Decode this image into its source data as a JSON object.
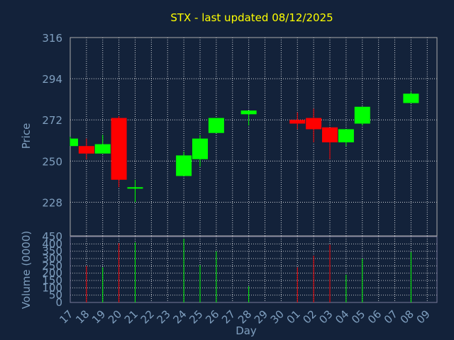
{
  "chart_data": {
    "type": "candlestick",
    "title": "STX - last updated 08/12/2025",
    "xlabel": "Day",
    "colors": {
      "background": "#13223a",
      "title": "#ffff00",
      "axis_text": "#7f9fbf",
      "grid": "#ffffff",
      "up": "#00ff00",
      "down": "#ff0000",
      "price_frame": "#aaaaaa",
      "volume_frame": "#7a7a9a"
    },
    "x_tick_labels": [
      "17",
      "18",
      "19",
      "20",
      "21",
      "22",
      "23",
      "24",
      "25",
      "26",
      "27",
      "28",
      "29",
      "30",
      "01",
      "02",
      "03",
      "04",
      "05",
      "06",
      "07",
      "08",
      "09"
    ],
    "price_panel": {
      "ylabel": "Price",
      "ylim": [
        210,
        316
      ],
      "yticks": [
        228,
        250,
        272,
        294,
        316
      ],
      "grid": true
    },
    "volume_panel": {
      "ylabel": "Volume (0000)",
      "ylim": [
        0,
        450
      ],
      "yticks": [
        0,
        50,
        100,
        150,
        200,
        250,
        300,
        350,
        400,
        450
      ],
      "grid": true
    },
    "candles": [
      {
        "day": "17",
        "open": 258,
        "high": 263,
        "low": 258,
        "close": 262,
        "volume": null
      },
      {
        "day": "18",
        "open": 258,
        "high": 262,
        "low": 251,
        "close": 254,
        "volume": 250
      },
      {
        "day": "19",
        "open": 254,
        "high": 264,
        "low": 254,
        "close": 259,
        "volume": 240
      },
      {
        "day": "20",
        "open": 273,
        "high": 274,
        "low": 236,
        "close": 240,
        "volume": 405
      },
      {
        "day": "21",
        "open": 236,
        "high": 240,
        "low": 228,
        "close": 236,
        "volume": 410
      },
      {
        "day": "24",
        "open": 242,
        "high": 255,
        "low": 242,
        "close": 253,
        "volume": 435
      },
      {
        "day": "25",
        "open": 251,
        "high": 264,
        "low": 247,
        "close": 262,
        "volume": 255
      },
      {
        "day": "26",
        "open": 265,
        "high": 273,
        "low": 265,
        "close": 273,
        "volume": 350
      },
      {
        "day": "28",
        "open": 275,
        "high": 277,
        "low": 269,
        "close": 277,
        "volume": 110
      },
      {
        "day": "01",
        "open": 272,
        "high": 276,
        "low": 267,
        "close": 270,
        "volume": 240
      },
      {
        "day": "02",
        "open": 273,
        "high": 278,
        "low": 260,
        "close": 267,
        "volume": 320
      },
      {
        "day": "03",
        "open": 268,
        "high": 268,
        "low": 251,
        "close": 260,
        "volume": 395
      },
      {
        "day": "04",
        "open": 260,
        "high": 267,
        "low": 258,
        "close": 267,
        "volume": 190
      },
      {
        "day": "05",
        "open": 270,
        "high": 279,
        "low": 269,
        "close": 279,
        "volume": 300
      },
      {
        "day": "08",
        "open": 281,
        "high": 287,
        "low": 281,
        "close": 286,
        "volume": 345
      }
    ]
  }
}
